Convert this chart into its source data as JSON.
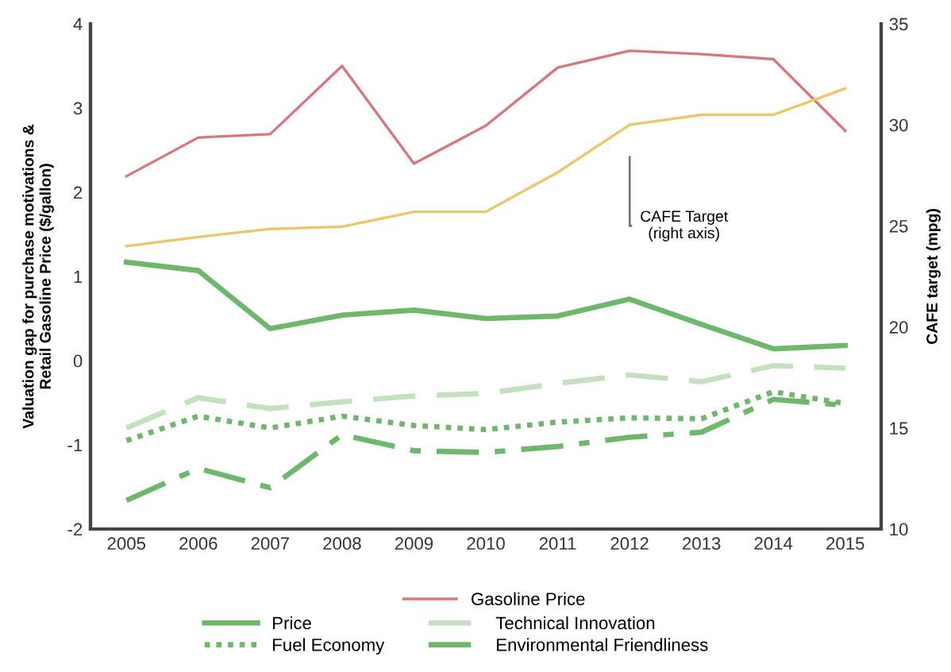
{
  "chart_data": {
    "type": "line",
    "x": [
      2005,
      2006,
      2007,
      2008,
      2009,
      2010,
      2011,
      2012,
      2013,
      2014,
      2015
    ],
    "ylabel": "Valuation gap for purchase motivations &\nRetail Gasoline Price ($/gallon)",
    "y2label": "CAFE target (mpg)",
    "xlim": [
      2004.5,
      2015.5
    ],
    "xticks": [
      2005,
      2006,
      2007,
      2008,
      2009,
      2010,
      2011,
      2012,
      2013,
      2014,
      2015
    ],
    "ylim": [
      -2,
      4
    ],
    "yticks": [
      -2,
      -1,
      0,
      1,
      2,
      3,
      4
    ],
    "y2lim": [
      10,
      35
    ],
    "y2ticks": [
      10,
      15,
      20,
      25,
      30,
      35
    ],
    "grid": false,
    "legend": "bottom",
    "marker": "none",
    "series": [
      {
        "name": "Gasoline Price",
        "color": "#d9777d",
        "line_style": "solid",
        "values": [
          2.19,
          2.65,
          2.69,
          3.5,
          2.34,
          2.79,
          3.48,
          3.68,
          3.64,
          3.58,
          2.73
        ]
      },
      {
        "name": "Price",
        "color": "#6db86b",
        "line_style": "solid",
        "values": [
          1.17,
          1.07,
          0.38,
          0.54,
          0.6,
          0.5,
          0.53,
          0.73,
          0.43,
          0.14,
          0.18
        ]
      },
      {
        "name": "Technical Innovation",
        "color": "#c3e0bf",
        "line_style": "dashed",
        "values": [
          -0.8,
          -0.44,
          -0.57,
          -0.49,
          -0.42,
          -0.39,
          -0.27,
          -0.17,
          -0.25,
          -0.06,
          -0.09
        ]
      },
      {
        "name": "Fuel Economy",
        "color": "#6db86b",
        "line_style": "dotted",
        "values": [
          -0.95,
          -0.66,
          -0.8,
          -0.66,
          -0.77,
          -0.82,
          -0.73,
          -0.68,
          -0.69,
          -0.37,
          -0.51
        ]
      },
      {
        "name": "Environmental Friendliness",
        "color": "#6db86b",
        "line_style": "dashdot",
        "values": [
          -1.66,
          -1.28,
          -1.51,
          -0.88,
          -1.07,
          -1.09,
          -1.02,
          -0.91,
          -0.85,
          -0.46,
          -0.53
        ]
      },
      {
        "color": "#ecc66a",
        "line_style": "solid",
        "axis": "y2",
        "values": [
          24.0,
          24.45,
          24.85,
          24.96,
          25.7,
          25.7,
          27.65,
          30.0,
          30.5,
          30.5,
          31.8
        ]
      }
    ],
    "annotations": [
      "CAFE Target\n(right axis)"
    ]
  }
}
